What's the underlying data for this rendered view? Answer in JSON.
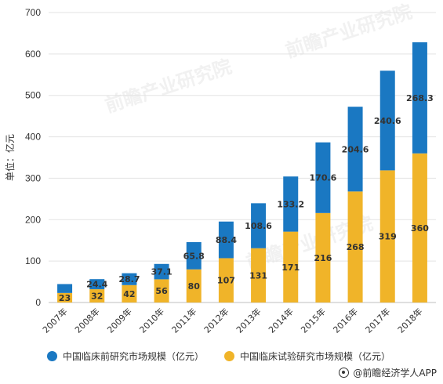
{
  "chart_data": {
    "type": "bar",
    "stacked": true,
    "ylabel": "单位：亿元",
    "ylim": [
      0,
      700
    ],
    "yticks": [
      0,
      100,
      200,
      300,
      400,
      500,
      600,
      700
    ],
    "categories": [
      "2007年",
      "2008年",
      "2009年",
      "2010年",
      "2011年",
      "2012年",
      "2013年",
      "2014年",
      "2015年",
      "2016年",
      "2017年",
      "2018年"
    ],
    "series": [
      {
        "name": "中国临床试验研究市场规模（亿元）",
        "color": "#f0b429",
        "values": [
          23,
          32,
          42,
          56,
          80,
          107,
          131,
          171,
          216,
          268,
          319,
          360
        ]
      },
      {
        "name": "中国临床前研究市场规模（亿元）",
        "color": "#1a78c2",
        "values": [
          21.5,
          24.4,
          28.7,
          37.1,
          65.8,
          88.4,
          108.6,
          133.2,
          170.6,
          204.6,
          240.6,
          268.3
        ],
        "labels": [
          "",
          "24.4",
          "28.7",
          "37.1",
          "65.8",
          "88.4",
          "108.6",
          "133.2",
          "170.6",
          "204.6",
          "240.6",
          "268.3"
        ]
      }
    ],
    "legend_order": [
      "中国临床前研究市场规模（亿元）",
      "中国临床试验研究市场规模（亿元）"
    ],
    "legend_position": "bottom",
    "grid": true
  },
  "legend": {
    "item1": "中国临床前研究市场规模（亿元）",
    "item2": "中国临床试验研究市场规模（亿元）"
  },
  "watermark": {
    "brand": "前瞻产业研究院"
  },
  "source": {
    "text": "@前瞻经济学人APP",
    "icon": "source-icon"
  }
}
